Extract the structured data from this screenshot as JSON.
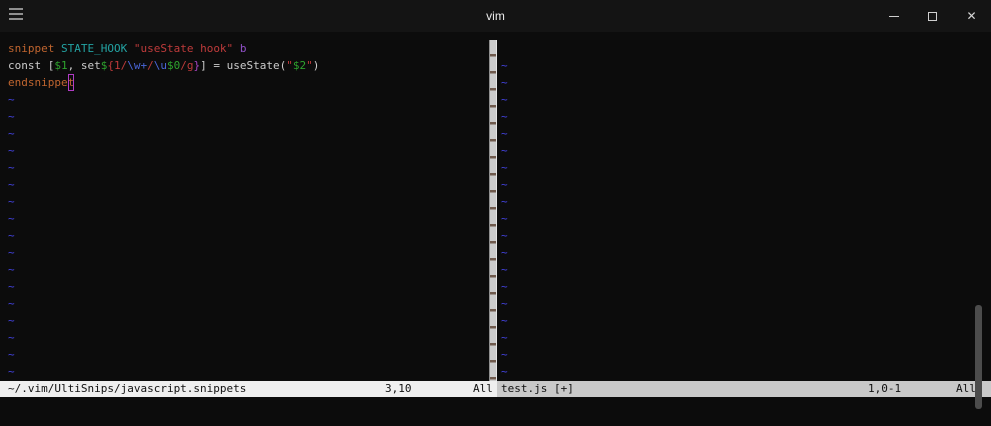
{
  "window": {
    "title": "vim",
    "menu_icon": "hamburger-icon",
    "controls": {
      "close_glyph": "✕"
    }
  },
  "terminal": {
    "left_pane": {
      "lines": [
        [
          {
            "t": "snippet",
            "c": "orange"
          },
          {
            "t": " ",
            "c": "white"
          },
          {
            "t": "STATE_HOOK",
            "c": "teal"
          },
          {
            "t": " ",
            "c": "white"
          },
          {
            "t": "\"useState hook\"",
            "c": "red"
          },
          {
            "t": " ",
            "c": "white"
          },
          {
            "t": "b",
            "c": "purple"
          }
        ],
        [
          {
            "t": "const [",
            "c": "white"
          },
          {
            "t": "$1",
            "c": "green"
          },
          {
            "t": ", set",
            "c": "white"
          },
          {
            "t": "$",
            "c": "green"
          },
          {
            "t": "{1/",
            "c": "red"
          },
          {
            "t": "\\w+",
            "c": "blue"
          },
          {
            "t": "/",
            "c": "red"
          },
          {
            "t": "\\u",
            "c": "blue"
          },
          {
            "t": "$0",
            "c": "green"
          },
          {
            "t": "/g",
            "c": "red"
          },
          {
            "t": "}",
            "c": "magenta"
          },
          {
            "t": "] = useState(",
            "c": "white"
          },
          {
            "t": "\"",
            "c": "red"
          },
          {
            "t": "$2",
            "c": "green"
          },
          {
            "t": "\"",
            "c": "red"
          },
          {
            "t": ")",
            "c": "white"
          }
        ],
        [
          {
            "t": "endsnippe",
            "c": "orange"
          },
          {
            "t": "t",
            "c": "orange",
            "cursor": true
          }
        ]
      ],
      "tilde_char": "~",
      "tilde_count": 17
    },
    "right_pane": {
      "tilde_char": "~",
      "tilde_count": 19,
      "leading_empty_rows": 1
    },
    "statusline_left": {
      "file": "~/.vim/UltiSnips/javascript.snippets",
      "cursor_pos": "3,10",
      "progress": "All"
    },
    "statusline_right": {
      "file": "test.js [+]",
      "cursor_pos": "1,0-1",
      "progress": "All"
    }
  },
  "colors": {
    "orange": "#c0652f",
    "teal": "#23a3a3",
    "red": "#bf3b3b",
    "purple": "#9150c8",
    "white": "#cccccc",
    "green": "#2ea42e",
    "blue": "#4a66d8",
    "magenta": "#a944c4",
    "tilde": "#4444e4",
    "cursor_outline": "#b13cc4",
    "statusline_active_bg": "#efefef",
    "statusline_inactive_bg": "#c9c9c9"
  }
}
